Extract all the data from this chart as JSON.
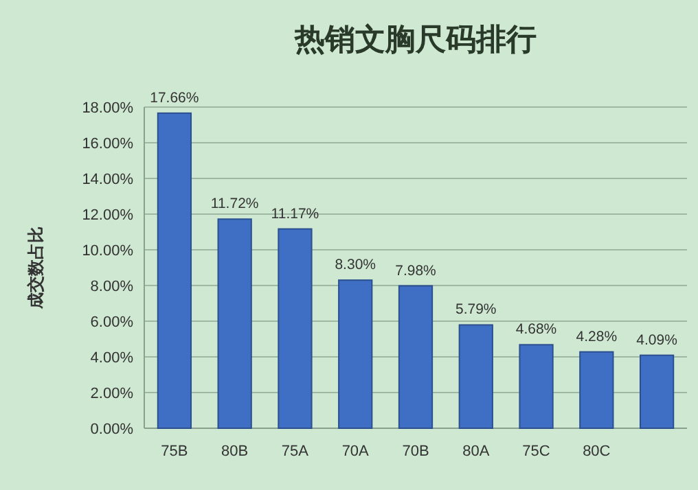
{
  "chart_data": {
    "type": "bar",
    "title": "热销文胸尺码排行",
    "ylabel": "成交数占比",
    "categories": [
      "75B",
      "80B",
      "75A",
      "70A",
      "70B",
      "80A",
      "75C",
      "80C",
      null
    ],
    "values": [
      17.66,
      11.72,
      11.17,
      8.3,
      7.98,
      5.79,
      4.68,
      4.28,
      4.09
    ],
    "value_labels": [
      "17.66%",
      "11.72%",
      "11.17%",
      "8.30%",
      "7.98%",
      "5.79%",
      "4.68%",
      "4.28%",
      "4.09%"
    ],
    "color": "#3f6fc4",
    "ylim": [
      0,
      18
    ],
    "yticks": [
      {
        "value": 0,
        "label": "0.00%"
      },
      {
        "value": 2,
        "label": "2.00%"
      },
      {
        "value": 4,
        "label": "4.00%"
      },
      {
        "value": 6,
        "label": "6.00%"
      },
      {
        "value": 8,
        "label": "8.00%"
      },
      {
        "value": 10,
        "label": "10.00%"
      },
      {
        "value": 12,
        "label": "12.00%"
      },
      {
        "value": 14,
        "label": "14.00%"
      },
      {
        "value": 16,
        "label": "16.00%"
      },
      {
        "value": 18,
        "label": "18.00%"
      }
    ],
    "grid": "y"
  }
}
